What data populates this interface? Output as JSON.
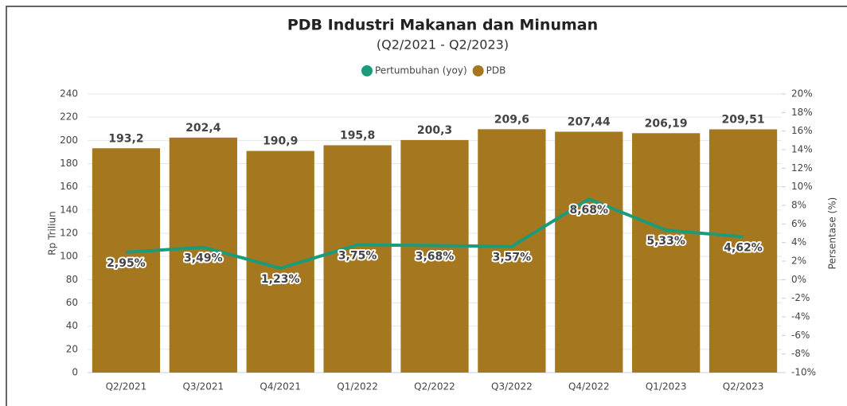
{
  "chart_data": {
    "type": "bar",
    "title": "PDB Industri Makanan dan Minuman",
    "subtitle": "(Q2/2021 - Q2/2023)",
    "y_label": "Rp Triliun",
    "y2_label": "Persentase (%)",
    "categories": [
      "Q2/2021",
      "Q3/2021",
      "Q4/2021",
      "Q1/2022",
      "Q2/2022",
      "Q3/2022",
      "Q4/2022",
      "Q1/2023",
      "Q2/2023"
    ],
    "series": [
      {
        "name": "Pertumbuhan (yoy)",
        "type": "line",
        "axis": "y2",
        "color": "#1a9b7a",
        "values": [
          2.95,
          3.49,
          1.23,
          3.75,
          3.68,
          3.57,
          8.68,
          5.33,
          4.62
        ],
        "value_labels": [
          "2,95%",
          "3,49%",
          "1,23%",
          "3,75%",
          "3,68%",
          "3,57%",
          "8,68%",
          "5,33%",
          "4,62%"
        ]
      },
      {
        "name": "PDB",
        "type": "bar",
        "color": "#a5771f",
        "values": [
          193.2,
          202.4,
          190.9,
          195.8,
          200.3,
          209.6,
          207.44,
          206.19,
          209.51
        ],
        "value_labels": [
          "193,2",
          "202,4",
          "190,9",
          "195,8",
          "200,3",
          "209,6",
          "207,44",
          "206,19",
          "209,51"
        ]
      }
    ],
    "ylim": [
      0,
      240
    ],
    "yticks": [
      0,
      20,
      40,
      60,
      80,
      100,
      120,
      140,
      160,
      180,
      200,
      220,
      240
    ],
    "y2lim": [
      -10,
      20
    ],
    "y2ticks": [
      {
        "value": -10,
        "label": "-10%"
      },
      {
        "value": -8,
        "label": "-8%"
      },
      {
        "value": -6,
        "label": "-6%"
      },
      {
        "value": -4,
        "label": "-4%"
      },
      {
        "value": -2,
        "label": "-2%"
      },
      {
        "value": 0,
        "label": "0%"
      },
      {
        "value": 2,
        "label": "2%"
      },
      {
        "value": 4,
        "label": "4%"
      },
      {
        "value": 6,
        "label": "6%"
      },
      {
        "value": 8,
        "label": "8%"
      },
      {
        "value": 10,
        "label": "10%"
      },
      {
        "value": 12,
        "label": "12%"
      },
      {
        "value": 14,
        "label": "14%"
      },
      {
        "value": 16,
        "label": "16%"
      },
      {
        "value": 18,
        "label": "18%"
      },
      {
        "value": 20,
        "label": "20%"
      }
    ],
    "grid": true
  }
}
